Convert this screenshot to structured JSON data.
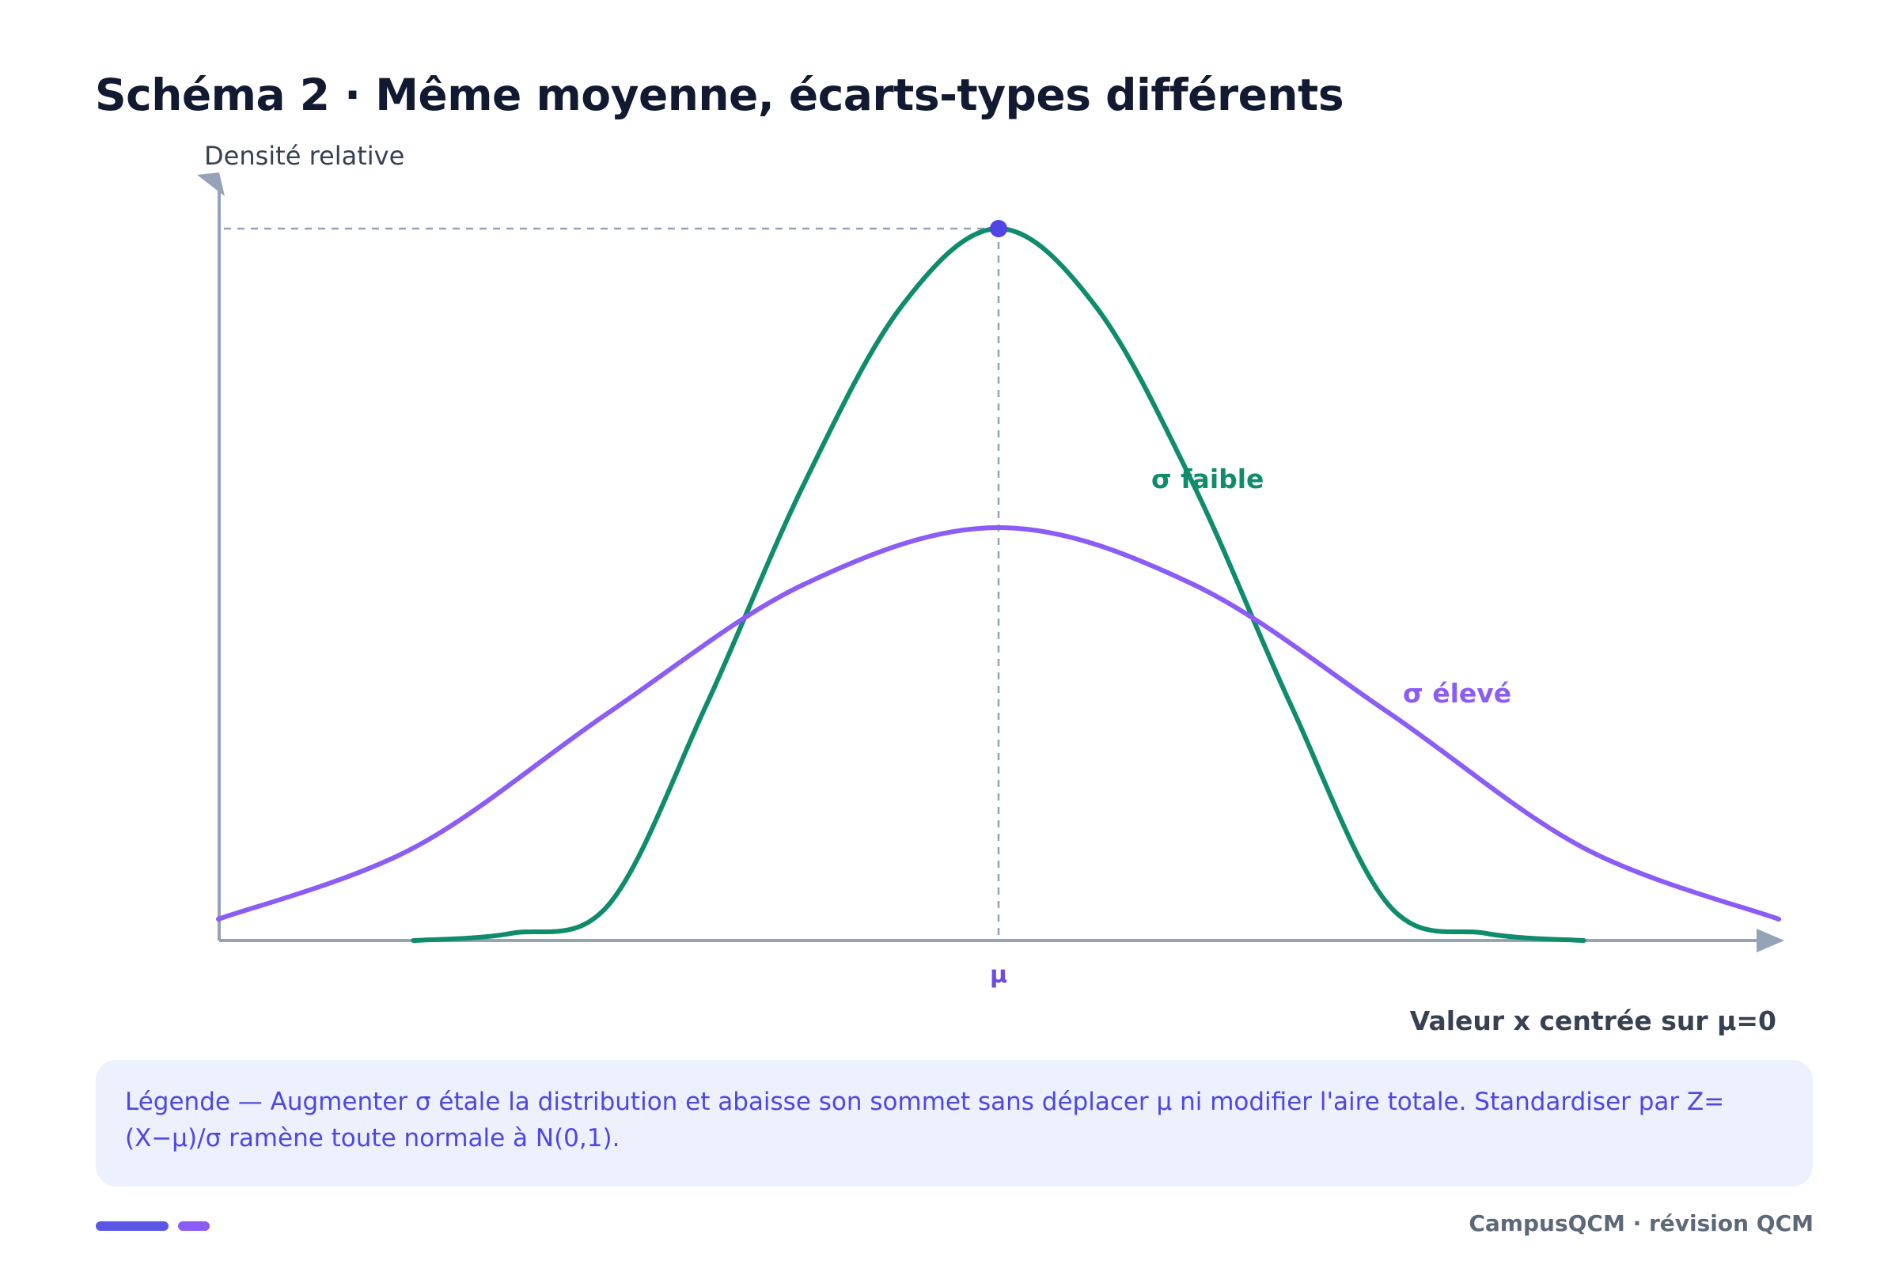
{
  "title": "Schéma 2 · Même moyenne, écarts-types différents",
  "legend_text": "Légende — Augmenter σ étale la distribution et abaisse son sommet sans déplacer μ ni modifier l'aire totale. Standardiser par Z=(X−μ)/σ ramène toute normale à N(0,1).",
  "footer_brand": "CampusQCM · révision QCM",
  "colors": {
    "axis": "#94a3b8",
    "narrow": "#0f8c6c",
    "wide": "#8b5cf6",
    "peak_marker": "#4f46e5",
    "tick_label": "#6d4ddd",
    "label_text": "#374151"
  },
  "chart_data": {
    "type": "line",
    "title": "Schéma 2 · Même moyenne, écarts-types différents",
    "xlabel": "Valeur x centrée sur μ=0",
    "ylabel": "Densité relative",
    "x_tick_labels": [
      "μ"
    ],
    "grid": false,
    "legend": "inline labels next to each curve",
    "xlim": [
      -4,
      4
    ],
    "ylim": [
      0,
      1
    ],
    "series": [
      {
        "name": "σ faible",
        "mean": 0,
        "sigma": 1,
        "x": [
          -3,
          -2.5,
          -2,
          -1.5,
          -1,
          -0.5,
          0,
          0.5,
          1,
          1.5,
          2,
          2.5,
          3
        ],
        "y": [
          0.0,
          0.01,
          0.05,
          0.33,
          0.64,
          0.89,
          1.0,
          0.89,
          0.64,
          0.33,
          0.05,
          0.01,
          0.0
        ]
      },
      {
        "name": "σ élevé",
        "mean": 0,
        "sigma": 2,
        "x": [
          -4,
          -3,
          -2,
          -1,
          0,
          1,
          2,
          3,
          4
        ],
        "y": [
          0.03,
          0.13,
          0.32,
          0.5,
          0.58,
          0.5,
          0.32,
          0.13,
          0.03
        ]
      }
    ],
    "annotations": [
      "peak of σ faible marked with a dot and dashed guides to both axes"
    ]
  }
}
